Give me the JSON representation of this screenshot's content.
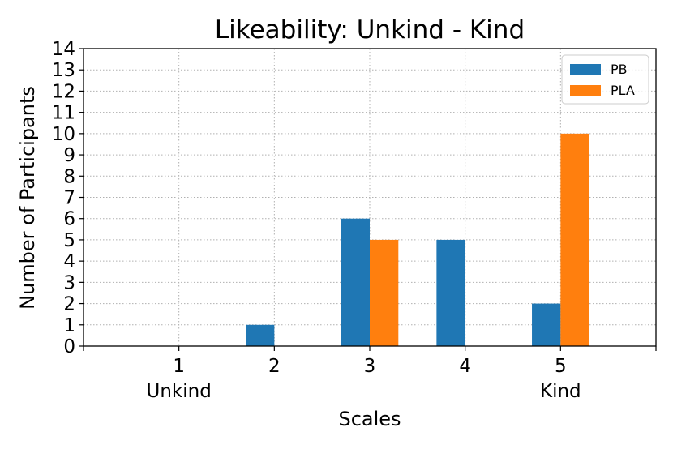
{
  "chart_data": {
    "type": "bar",
    "title": "Likeability:  Unkind - Kind",
    "xlabel": "Scales",
    "ylabel": "Number of Participants",
    "categories": [
      "1",
      "2",
      "3",
      "4",
      "5"
    ],
    "category_sublabels": [
      "Unkind",
      "",
      "",
      "",
      "Kind"
    ],
    "series": [
      {
        "name": "PB",
        "values": [
          0,
          1,
          6,
          5,
          2
        ],
        "color": "#1f77b4"
      },
      {
        "name": "PLA",
        "values": [
          0,
          0,
          5,
          0,
          10
        ],
        "color": "#ff7f0e"
      }
    ],
    "xlim": [
      0.0,
      6.0
    ],
    "ylim": [
      0,
      14
    ],
    "yticks": [
      0,
      1,
      2,
      3,
      4,
      5,
      6,
      7,
      8,
      9,
      10,
      11,
      12,
      13,
      14
    ],
    "grid": true,
    "legend_position": "top-right"
  }
}
